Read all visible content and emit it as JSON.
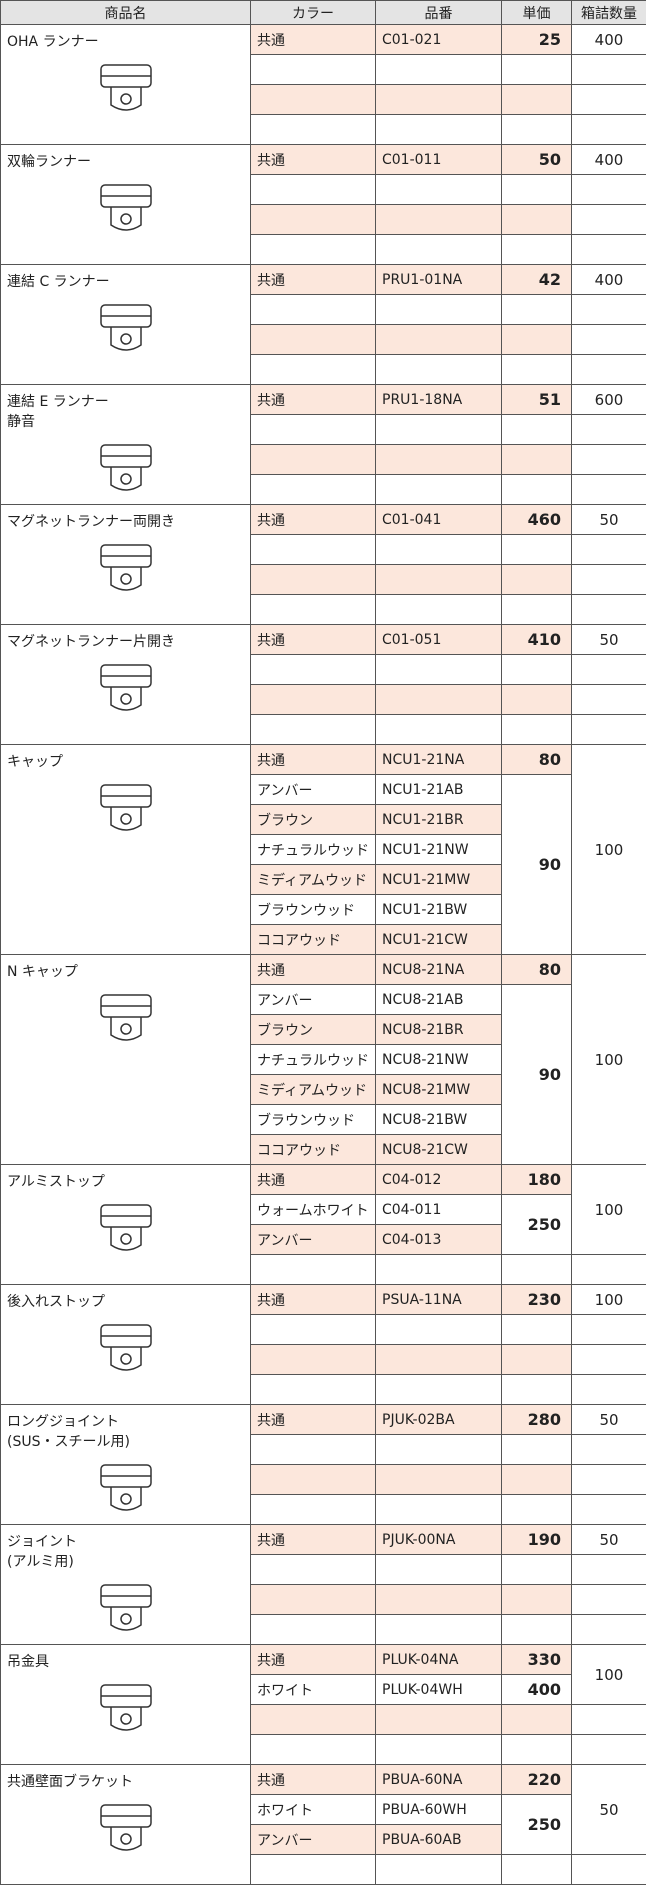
{
  "header": [
    "商品名",
    "カラー",
    "品番",
    "単価",
    "箱詰数量"
  ],
  "products": [
    {
      "name": [
        "OHA ランナー"
      ],
      "qty": 400,
      "rows": [
        {
          "color": "共通",
          "code": "C01-021",
          "price": 25
        }
      ]
    },
    {
      "name": [
        "双輪ランナー"
      ],
      "qty": 400,
      "rows": [
        {
          "color": "共通",
          "code": "C01-011",
          "price": 50
        }
      ]
    },
    {
      "name": [
        "連結 C ランナー"
      ],
      "qty": 400,
      "rows": [
        {
          "color": "共通",
          "code": "PRU1-01NA",
          "price": 42
        }
      ]
    },
    {
      "name": [
        "連結 E ランナー",
        "静音"
      ],
      "qty": 600,
      "rows": [
        {
          "color": "共通",
          "code": "PRU1-18NA",
          "price": 51
        }
      ]
    },
    {
      "name": [
        "マグネットランナー両開き"
      ],
      "qty": 50,
      "rows": [
        {
          "color": "共通",
          "code": "C01-041",
          "price": 460
        }
      ]
    },
    {
      "name": [
        "マグネットランナー片開き"
      ],
      "qty": 50,
      "rows": [
        {
          "color": "共通",
          "code": "C01-051",
          "price": 410
        }
      ]
    },
    {
      "name": [
        "キャップ"
      ],
      "qty": 100,
      "rows": [
        {
          "color": "共通",
          "code": "NCU1-21NA",
          "price": 80
        },
        {
          "color": "アンバー",
          "code": "NCU1-21AB",
          "price": 90
        },
        {
          "color": "ブラウン",
          "code": "NCU1-21BR",
          "price": null
        },
        {
          "color": "ナチュラルウッド",
          "code": "NCU1-21NW",
          "price": null
        },
        {
          "color": "ミディアムウッド",
          "code": "NCU1-21MW",
          "price": null
        },
        {
          "color": "ブラウンウッド",
          "code": "NCU1-21BW",
          "price": null
        },
        {
          "color": "ココアウッド",
          "code": "NCU1-21CW",
          "price": null
        }
      ]
    },
    {
      "name": [
        "N キャップ"
      ],
      "qty": 100,
      "rows": [
        {
          "color": "共通",
          "code": "NCU8-21NA",
          "price": 80
        },
        {
          "color": "アンバー",
          "code": "NCU8-21AB",
          "price": 90
        },
        {
          "color": "ブラウン",
          "code": "NCU8-21BR",
          "price": null
        },
        {
          "color": "ナチュラルウッド",
          "code": "NCU8-21NW",
          "price": null
        },
        {
          "color": "ミディアムウッド",
          "code": "NCU8-21MW",
          "price": null
        },
        {
          "color": "ブラウンウッド",
          "code": "NCU8-21BW",
          "price": null
        },
        {
          "color": "ココアウッド",
          "code": "NCU8-21CW",
          "price": null
        }
      ]
    },
    {
      "name": [
        "アルミストップ"
      ],
      "qty": 100,
      "rows": [
        {
          "color": "共通",
          "code": "C04-012",
          "price": 180
        },
        {
          "color": "ウォームホワイト",
          "code": "C04-011",
          "price": 250
        },
        {
          "color": "アンバー",
          "code": "C04-013",
          "price": null
        }
      ]
    },
    {
      "name": [
        "後入れストップ"
      ],
      "qty": 100,
      "rows": [
        {
          "color": "共通",
          "code": "PSUA-11NA",
          "price": 230
        }
      ]
    },
    {
      "name": [
        "ロングジョイント",
        "(SUS・スチール用)"
      ],
      "qty": 50,
      "rows": [
        {
          "color": "共通",
          "code": "PJUK-02BA",
          "price": 280
        }
      ]
    },
    {
      "name": [
        "ジョイント",
        "(アルミ用)"
      ],
      "qty": 50,
      "rows": [
        {
          "color": "共通",
          "code": "PJUK-00NA",
          "price": 190
        }
      ]
    },
    {
      "name": [
        "吊金具"
      ],
      "qty": 100,
      "rows": [
        {
          "color": "共通",
          "code": "PLUK-04NA",
          "price": 330
        },
        {
          "color": "ホワイト",
          "code": "PLUK-04WH",
          "price": 400
        }
      ]
    },
    {
      "name": [
        "共通壁面ブラケット"
      ],
      "qty": 50,
      "rows": [
        {
          "color": "共通",
          "code": "PBUA-60NA",
          "price": 220
        },
        {
          "color": "ホワイト",
          "code": "PBUA-60WH",
          "price": 250
        },
        {
          "color": "アンバー",
          "code": "PBUA-60AB",
          "price": null
        }
      ]
    }
  ]
}
